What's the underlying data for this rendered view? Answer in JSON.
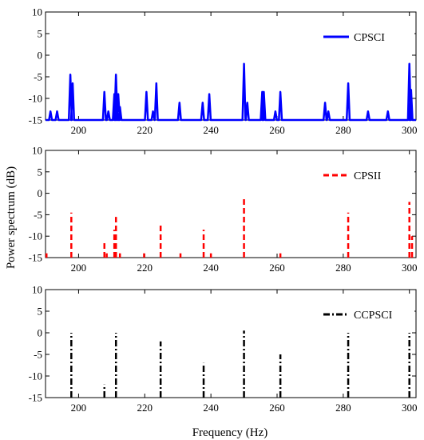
{
  "figure": {
    "ylabel": "Power spectrum (dB)",
    "xlabel": "Frequency (Hz)"
  },
  "chart_data": [
    {
      "type": "line",
      "x_ticks": [
        200,
        220,
        240,
        260,
        280,
        300
      ],
      "y_ticks": [
        10,
        5,
        0,
        -5,
        -10,
        -15
      ],
      "xlim": [
        190,
        302
      ],
      "ylim": [
        -15,
        10
      ],
      "series": [
        {
          "name": "CPSCI",
          "color": "#0000ff",
          "style": "solid",
          "peaks": [
            {
              "x": 191.5,
              "y": -13
            },
            {
              "x": 193.5,
              "y": -13
            },
            {
              "x": 197.5,
              "y": -4.5
            },
            {
              "x": 198.2,
              "y": -6.5
            },
            {
              "x": 207.8,
              "y": -8.5
            },
            {
              "x": 209,
              "y": -13
            },
            {
              "x": 210.8,
              "y": -9
            },
            {
              "x": 211.3,
              "y": -4.5
            },
            {
              "x": 212,
              "y": -9
            },
            {
              "x": 212.5,
              "y": -12
            },
            {
              "x": 220.5,
              "y": -8.5
            },
            {
              "x": 222.5,
              "y": -13
            },
            {
              "x": 223.5,
              "y": -6.5
            },
            {
              "x": 230.5,
              "y": -11
            },
            {
              "x": 237.5,
              "y": -11
            },
            {
              "x": 239.5,
              "y": -9
            },
            {
              "x": 250,
              "y": -2
            },
            {
              "x": 251,
              "y": -11
            },
            {
              "x": 255.5,
              "y": -8.5
            },
            {
              "x": 256,
              "y": -8.5
            },
            {
              "x": 259.5,
              "y": -13
            },
            {
              "x": 261,
              "y": -8.5
            },
            {
              "x": 274.5,
              "y": -11
            },
            {
              "x": 275.5,
              "y": -13
            },
            {
              "x": 281.5,
              "y": -6.5
            },
            {
              "x": 287.5,
              "y": -13
            },
            {
              "x": 293.5,
              "y": -13
            },
            {
              "x": 300,
              "y": -2
            },
            {
              "x": 300.5,
              "y": -8
            }
          ]
        }
      ]
    },
    {
      "type": "line",
      "x_ticks": [
        200,
        220,
        240,
        260,
        280,
        300
      ],
      "y_ticks": [
        10,
        5,
        0,
        -5,
        -10,
        -15
      ],
      "xlim": [
        190,
        302
      ],
      "ylim": [
        -15,
        10
      ],
      "series": [
        {
          "name": "CPSII",
          "color": "#ff0000",
          "style": "dashed",
          "peaks": [
            {
              "x": 190.3,
              "y": -14
            },
            {
              "x": 197.8,
              "y": -4.5
            },
            {
              "x": 207.8,
              "y": -11
            },
            {
              "x": 208.5,
              "y": -14
            },
            {
              "x": 210.8,
              "y": -8.5
            },
            {
              "x": 211.3,
              "y": -5.5
            },
            {
              "x": 212.5,
              "y": -14
            },
            {
              "x": 219.8,
              "y": -14
            },
            {
              "x": 224.8,
              "y": -7.5
            },
            {
              "x": 230.8,
              "y": -14
            },
            {
              "x": 237.8,
              "y": -8.5
            },
            {
              "x": 240,
              "y": -14
            },
            {
              "x": 250,
              "y": -1
            },
            {
              "x": 261,
              "y": -14
            },
            {
              "x": 281.5,
              "y": -4.5
            },
            {
              "x": 300,
              "y": -2
            },
            {
              "x": 300.8,
              "y": -10
            }
          ]
        }
      ]
    },
    {
      "type": "line",
      "x_ticks": [
        200,
        220,
        240,
        260,
        280,
        300
      ],
      "y_ticks": [
        10,
        5,
        0,
        -5,
        -10,
        -15
      ],
      "xlim": [
        190,
        302
      ],
      "ylim": [
        -15,
        10
      ],
      "series": [
        {
          "name": "CCPSCI",
          "color": "#000000",
          "style": "dashdot",
          "peaks": [
            {
              "x": 197.8,
              "y": 0
            },
            {
              "x": 207.8,
              "y": -12
            },
            {
              "x": 211.3,
              "y": 0
            },
            {
              "x": 224.8,
              "y": -2
            },
            {
              "x": 237.8,
              "y": -7
            },
            {
              "x": 250,
              "y": 0.5
            },
            {
              "x": 261,
              "y": -5
            },
            {
              "x": 281.5,
              "y": 0
            },
            {
              "x": 300,
              "y": 0
            }
          ]
        }
      ]
    }
  ]
}
